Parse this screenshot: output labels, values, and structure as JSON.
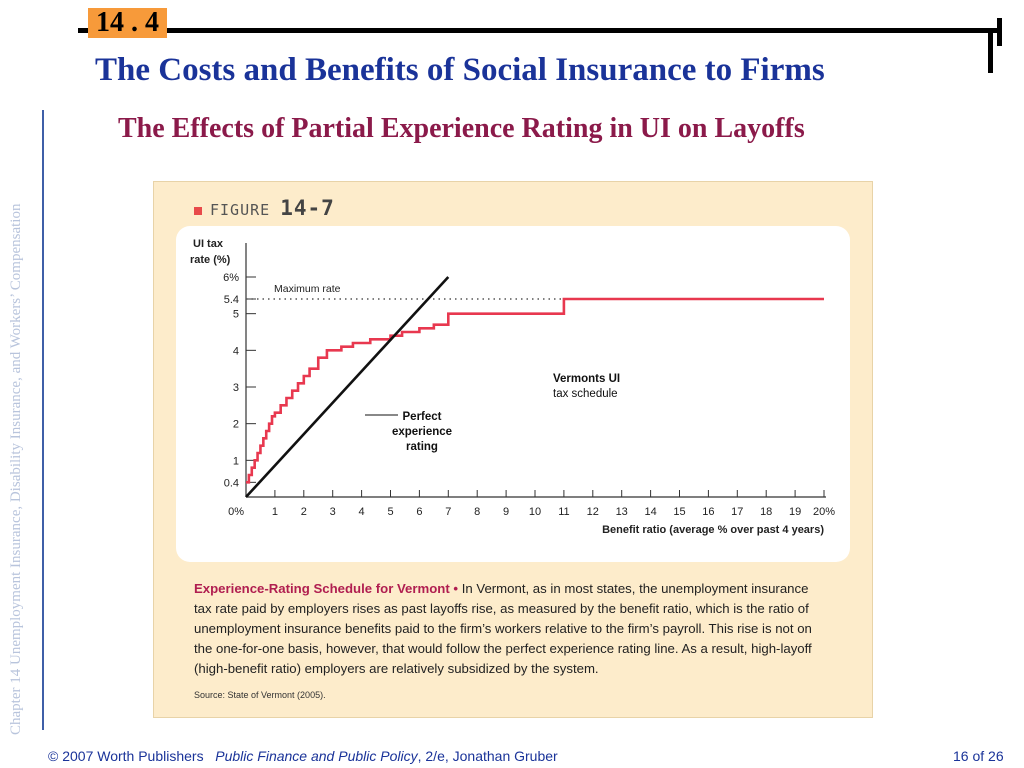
{
  "slide": {
    "section": "14 . 4",
    "title": "The Costs and Benefits of Social Insurance to Firms",
    "subtitle": "The Effects of Partial Experience Rating in UI on Layoffs",
    "side_text": "Chapter 14  Unemployment Insurance, Disability Insurance, and Workers’ Compensation"
  },
  "figure": {
    "label": "FIGURE",
    "number": "14-7",
    "caption_title": "Experience-Rating Schedule for Vermont •",
    "caption_body": " In Vermont, as in most states, the unemployment insurance tax rate paid by employers rises as past layoffs rise, as measured by the benefit ratio, which is the ratio of unemployment insurance benefits paid to the firm’s workers relative to the firm’s payroll. This rise is not on the one-for-one basis, however, that would follow the perfect experience rating line. As a result, high-layoff (high-benefit ratio) employers are relatively subsidized by the system.",
    "source": "Source: State of Vermont (2005)."
  },
  "chart_data": {
    "type": "line",
    "ylabel": "UI tax rate (%)",
    "xlabel": "Benefit ratio (average % over past 4 years)",
    "xlim": [
      0,
      20
    ],
    "ylim": [
      0,
      6
    ],
    "x_ticks": [
      {
        "value": 0,
        "label": "0%"
      },
      {
        "value": 1,
        "label": "1"
      },
      {
        "value": 2,
        "label": "2"
      },
      {
        "value": 3,
        "label": "3"
      },
      {
        "value": 4,
        "label": "4"
      },
      {
        "value": 5,
        "label": "5"
      },
      {
        "value": 6,
        "label": "6"
      },
      {
        "value": 7,
        "label": "7"
      },
      {
        "value": 8,
        "label": "8"
      },
      {
        "value": 9,
        "label": "9"
      },
      {
        "value": 10,
        "label": "10"
      },
      {
        "value": 11,
        "label": "11"
      },
      {
        "value": 12,
        "label": "12"
      },
      {
        "value": 13,
        "label": "13"
      },
      {
        "value": 14,
        "label": "14"
      },
      {
        "value": 15,
        "label": "15"
      },
      {
        "value": 16,
        "label": "16"
      },
      {
        "value": 17,
        "label": "17"
      },
      {
        "value": 18,
        "label": "18"
      },
      {
        "value": 19,
        "label": "19"
      },
      {
        "value": 20,
        "label": "20%"
      }
    ],
    "y_ticks": [
      {
        "value": 0.4,
        "label": "0.4"
      },
      {
        "value": 1,
        "label": "1"
      },
      {
        "value": 2,
        "label": "2"
      },
      {
        "value": 3,
        "label": "3"
      },
      {
        "value": 4,
        "label": "4"
      },
      {
        "value": 5,
        "label": "5"
      },
      {
        "value": 5.4,
        "label": "5.4"
      },
      {
        "value": 6,
        "label": "6%"
      }
    ],
    "reference_line": {
      "label": "Maximum rate",
      "y": 5.4
    },
    "series": [
      {
        "name": "Vermonts UI tax schedule",
        "color": "#e8384f",
        "step": true,
        "x": [
          0,
          0.1,
          0.2,
          0.3,
          0.4,
          0.5,
          0.6,
          0.7,
          0.8,
          0.9,
          1.0,
          1.2,
          1.4,
          1.6,
          1.8,
          2.0,
          2.2,
          2.5,
          2.8,
          3.3,
          3.7,
          4.3,
          5.0,
          5.4,
          6.0,
          6.5,
          7.0,
          11.0,
          20.0
        ],
        "y": [
          0.4,
          0.6,
          0.8,
          1.0,
          1.2,
          1.4,
          1.6,
          1.8,
          2.0,
          2.2,
          2.3,
          2.5,
          2.7,
          2.9,
          3.1,
          3.3,
          3.5,
          3.8,
          4.0,
          4.1,
          4.2,
          4.3,
          4.4,
          4.5,
          4.6,
          4.7,
          5.0,
          5.4,
          5.4
        ]
      },
      {
        "name": "Perfect experience rating",
        "color": "#111111",
        "step": false,
        "x": [
          0,
          7
        ],
        "y": [
          0,
          6
        ]
      }
    ]
  },
  "footer": {
    "publisher": "© 2007 Worth Publishers",
    "book": "Public Finance and Public Policy",
    "edition": ", 2/e, Jonathan Gruber",
    "page": "16 of 26"
  }
}
